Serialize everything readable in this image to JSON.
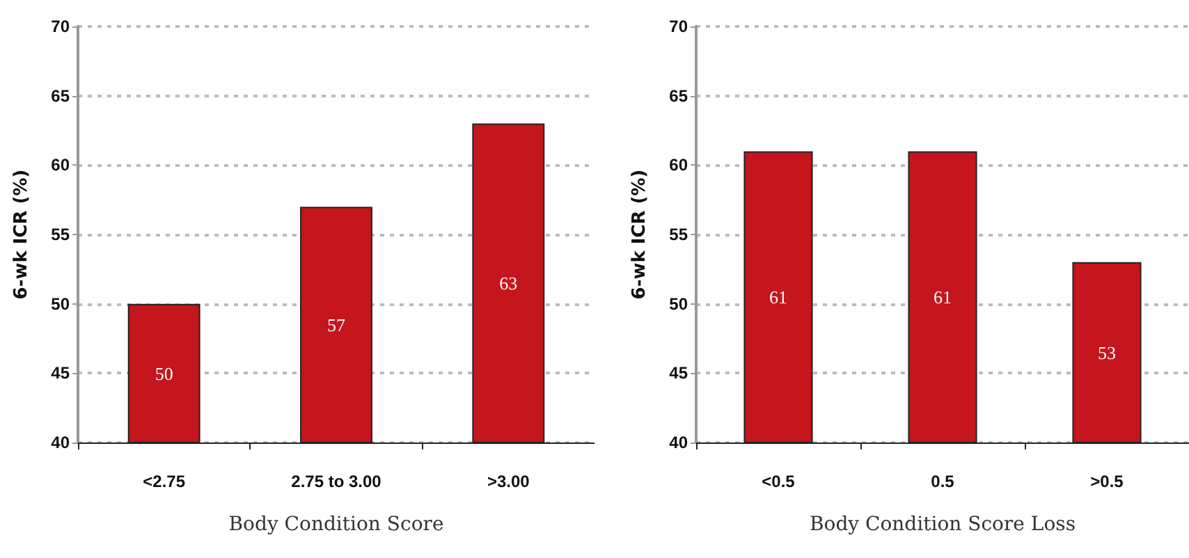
{
  "chart_data": [
    {
      "type": "bar",
      "xlabel": "Body Condition Score",
      "ylabel": "6-wk ICR (%)",
      "categories": [
        "<2.75",
        "2.75 to 3.00",
        ">3.00"
      ],
      "values": [
        50,
        57,
        63
      ],
      "color": "#c4161c",
      "ylim": [
        40,
        70
      ],
      "yticks": [
        40,
        45,
        50,
        55,
        60,
        65,
        70
      ],
      "grid": "y",
      "data_labels": true
    },
    {
      "type": "bar",
      "xlabel": "Body Condition Score Loss",
      "ylabel": "6-wk ICR (%)",
      "categories": [
        "<0.5",
        "0.5",
        ">0.5"
      ],
      "values": [
        61,
        61,
        53
      ],
      "color": "#c4161c",
      "ylim": [
        40,
        70
      ],
      "yticks": [
        40,
        45,
        50,
        55,
        60,
        65,
        70
      ],
      "grid": "y",
      "data_labels": true
    }
  ]
}
